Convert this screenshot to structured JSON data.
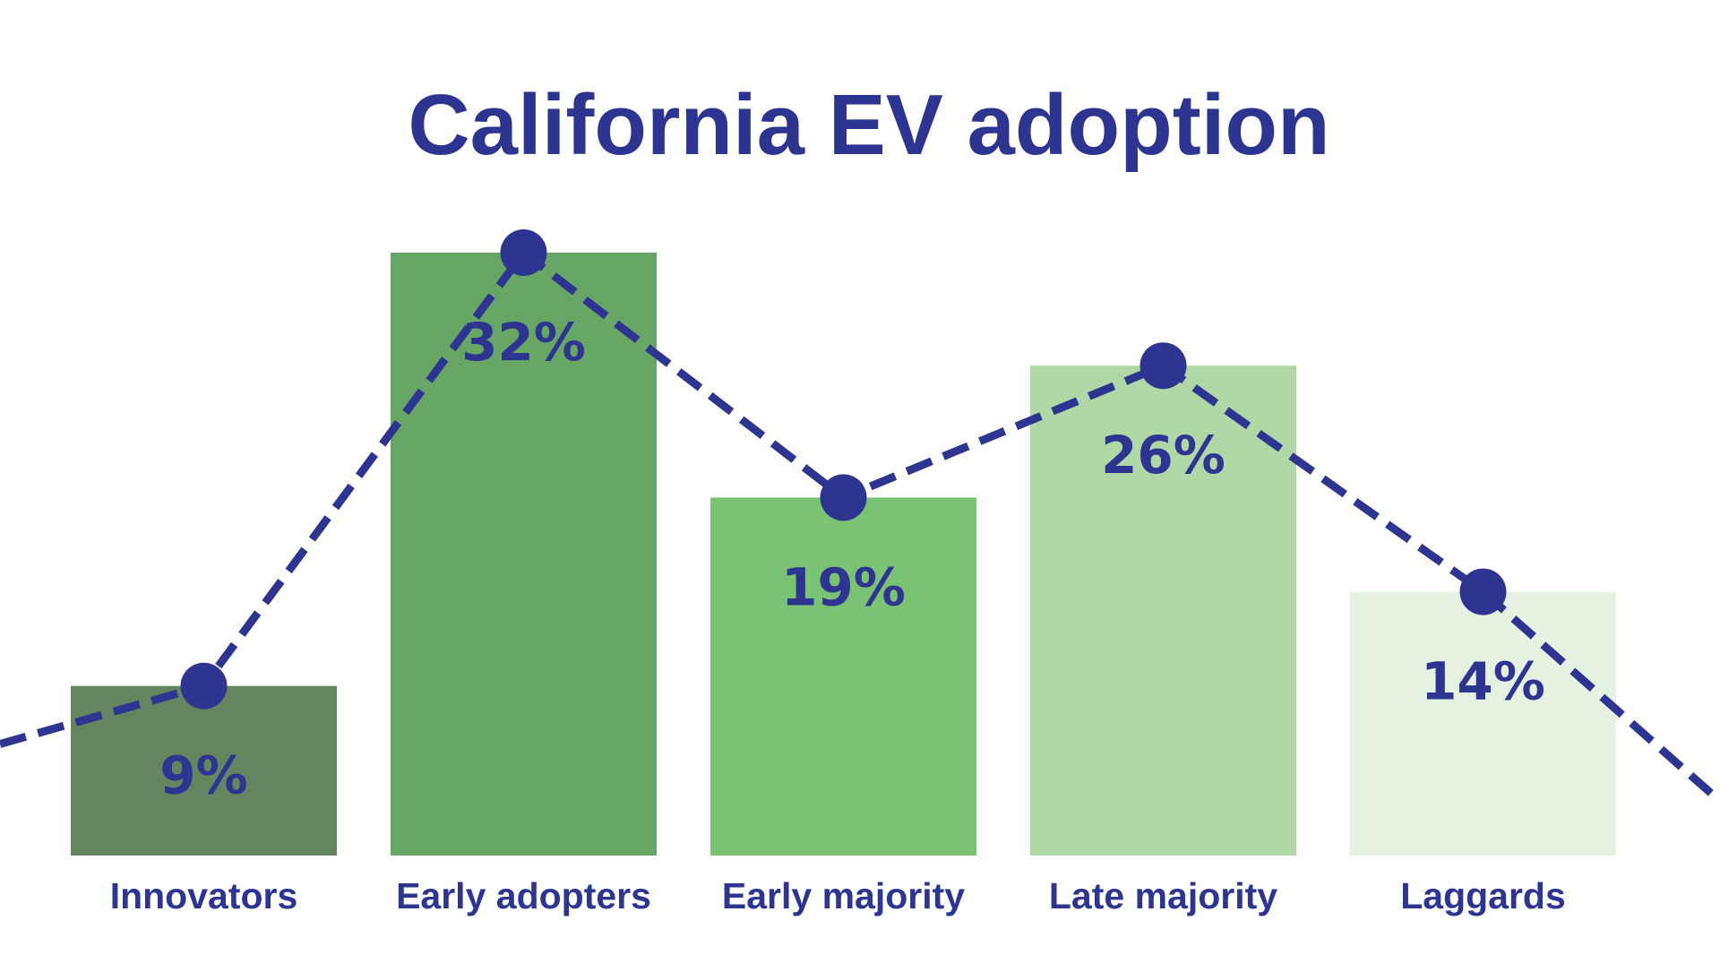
{
  "chart_data": {
    "type": "bar",
    "title": "California EV adoption",
    "categories": [
      "Innovators",
      "Early adopters",
      "Early majority",
      "Late majority",
      "Laggards"
    ],
    "values": [
      9,
      32,
      19,
      26,
      14
    ],
    "value_labels": [
      "9%",
      "32%",
      "19%",
      "26%",
      "14%"
    ],
    "unit": "%",
    "ylim": [
      0,
      32
    ],
    "grid": false,
    "legend": "none",
    "overlay": {
      "type": "line",
      "style": "dashed",
      "markers": "circle",
      "values": [
        9,
        32,
        19,
        26,
        14
      ],
      "extends_beyond_edges": true
    },
    "colors": {
      "text": "#2e3590",
      "line": "#2e3590",
      "bars": [
        "#638660",
        "#68a665",
        "#7ac374",
        "#afd8a6",
        "#e5f1e1"
      ],
      "background": "#ffffff"
    }
  }
}
